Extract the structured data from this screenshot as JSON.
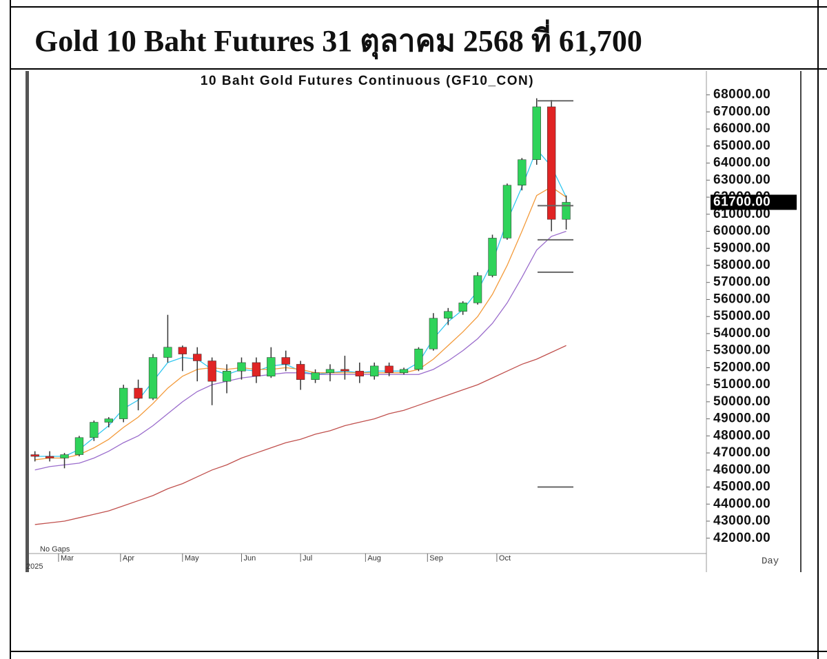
{
  "document_title": "Gold 10 Baht Futures 31 ตุลาคม 2568 ที่ 61,700",
  "chart_data": {
    "type": "candlestick",
    "title": "10 Baht Gold Futures Continuous (GF10_CON)",
    "note": "No Gaps",
    "year_label": "2025",
    "period_label": "Day",
    "up_color": "#2fd35a",
    "down_color": "#e02424",
    "wick_color": "#333333",
    "open": [
      46900,
      46800,
      46700,
      46900,
      47900,
      48800,
      49000,
      50800,
      50200,
      52600,
      53200,
      52800,
      52400,
      51200,
      51800,
      52300,
      51500,
      52600,
      52200,
      51300,
      51700,
      51900,
      51800,
      51500,
      52100,
      51700,
      51900,
      53100,
      54900,
      55300,
      55800,
      57400,
      59600,
      62700,
      64200,
      67300,
      60700
    ],
    "high": [
      47100,
      47100,
      47000,
      48000,
      48900,
      49100,
      51000,
      51300,
      52800,
      55100,
      53300,
      53200,
      52600,
      52200,
      52600,
      52600,
      53200,
      53000,
      52400,
      51900,
      52200,
      52700,
      52300,
      52300,
      52300,
      52000,
      53200,
      55200,
      55500,
      55900,
      57600,
      59800,
      62800,
      64300,
      67800,
      67700,
      62100
    ],
    "low": [
      46500,
      46500,
      46100,
      46800,
      47700,
      48500,
      48800,
      49500,
      50100,
      52300,
      51800,
      51200,
      49800,
      50500,
      51300,
      51100,
      51400,
      51800,
      50700,
      51100,
      51200,
      51300,
      51100,
      51300,
      51500,
      51600,
      51800,
      53000,
      54500,
      55100,
      55700,
      57300,
      59500,
      62400,
      63900,
      60000,
      60100
    ],
    "close": [
      46800,
      46700,
      46900,
      47900,
      48800,
      49000,
      50800,
      50200,
      52600,
      53200,
      52800,
      52400,
      51200,
      51800,
      52300,
      51500,
      52600,
      52200,
      51300,
      51700,
      51900,
      51800,
      51500,
      52100,
      51700,
      51900,
      53100,
      54900,
      55300,
      55800,
      57400,
      59600,
      62700,
      64200,
      67300,
      60700,
      61700
    ],
    "moving_averages": [
      {
        "color": "#33c8f0",
        "values": [
          46800,
          46800,
          46800,
          47200,
          47900,
          48600,
          49600,
          50100,
          51200,
          52300,
          52600,
          52500,
          51900,
          51600,
          51900,
          51800,
          52100,
          52200,
          51800,
          51600,
          51700,
          51800,
          51700,
          51800,
          51800,
          51800,
          52300,
          53700,
          54700,
          55400,
          56500,
          58200,
          60600,
          62600,
          64800,
          63800,
          62000
        ]
      },
      {
        "color": "#f39a3a",
        "values": [
          46600,
          46700,
          46700,
          46900,
          47300,
          47800,
          48500,
          49100,
          49900,
          50800,
          51500,
          51900,
          52000,
          51900,
          52000,
          51900,
          51900,
          52000,
          51900,
          51700,
          51700,
          51700,
          51700,
          51700,
          51700,
          51700,
          51900,
          52500,
          53300,
          54100,
          55000,
          56300,
          58000,
          60000,
          62100,
          62600,
          62000
        ]
      },
      {
        "color": "#9a6ccc",
        "values": [
          46000,
          46200,
          46300,
          46400,
          46700,
          47100,
          47600,
          48000,
          48600,
          49300,
          50000,
          50600,
          51000,
          51200,
          51400,
          51500,
          51600,
          51700,
          51700,
          51600,
          51600,
          51600,
          51600,
          51600,
          51600,
          51600,
          51600,
          51900,
          52400,
          53000,
          53700,
          54600,
          55800,
          57300,
          58900,
          59700,
          60000
        ]
      },
      {
        "color": "#c0504d",
        "values": [
          42800,
          42900,
          43000,
          43200,
          43400,
          43600,
          43900,
          44200,
          44500,
          44900,
          45200,
          45600,
          46000,
          46300,
          46700,
          47000,
          47300,
          47600,
          47800,
          48100,
          48300,
          48600,
          48800,
          49000,
          49300,
          49500,
          49800,
          50100,
          50400,
          50700,
          51000,
          51400,
          51800,
          52200,
          52500,
          52900,
          53300
        ]
      }
    ],
    "levels": [
      67650,
      59500,
      57600,
      45000,
      61500
    ],
    "level_color": "#666666",
    "last_price": {
      "value": 61700,
      "label": "61700.00"
    },
    "xlim": [
      -0.5,
      45.5
    ],
    "xticks": [
      {
        "value": 1.6,
        "label": "Mar"
      },
      {
        "value": 5.8,
        "label": "Apr"
      },
      {
        "value": 10,
        "label": "May"
      },
      {
        "value": 14,
        "label": "Jun"
      },
      {
        "value": 18,
        "label": "Jul"
      },
      {
        "value": 22.4,
        "label": "Aug"
      },
      {
        "value": 26.6,
        "label": "Sep"
      },
      {
        "value": 31.3,
        "label": "Oct"
      }
    ],
    "ylim": [
      41100,
      69400
    ],
    "yticks": [
      {
        "value": 68000,
        "label": "68000.00"
      },
      {
        "value": 67000,
        "label": "67000.00"
      },
      {
        "value": 66000,
        "label": "66000.00"
      },
      {
        "value": 65000,
        "label": "65000.00"
      },
      {
        "value": 64000,
        "label": "64000.00"
      },
      {
        "value": 63000,
        "label": "63000.00"
      },
      {
        "value": 62000,
        "label": "62000.00"
      },
      {
        "value": 61000,
        "label": "61000.00"
      },
      {
        "value": 60000,
        "label": "60000.00"
      },
      {
        "value": 59000,
        "label": "59000.00"
      },
      {
        "value": 58000,
        "label": "58000.00"
      },
      {
        "value": 57000,
        "label": "57000.00"
      },
      {
        "value": 56000,
        "label": "56000.00"
      },
      {
        "value": 55000,
        "label": "55000.00"
      },
      {
        "value": 54000,
        "label": "54000.00"
      },
      {
        "value": 53000,
        "label": "53000.00"
      },
      {
        "value": 52000,
        "label": "52000.00"
      },
      {
        "value": 51000,
        "label": "51000.00"
      },
      {
        "value": 50000,
        "label": "50000.00"
      },
      {
        "value": 49000,
        "label": "49000.00"
      },
      {
        "value": 48000,
        "label": "48000.00"
      },
      {
        "value": 47000,
        "label": "47000.00"
      },
      {
        "value": 46000,
        "label": "46000.00"
      },
      {
        "value": 45000,
        "label": "45000.00"
      },
      {
        "value": 44000,
        "label": "44000.00"
      },
      {
        "value": 43000,
        "label": "43000.00"
      },
      {
        "value": 42000,
        "label": "42000.00"
      }
    ]
  }
}
